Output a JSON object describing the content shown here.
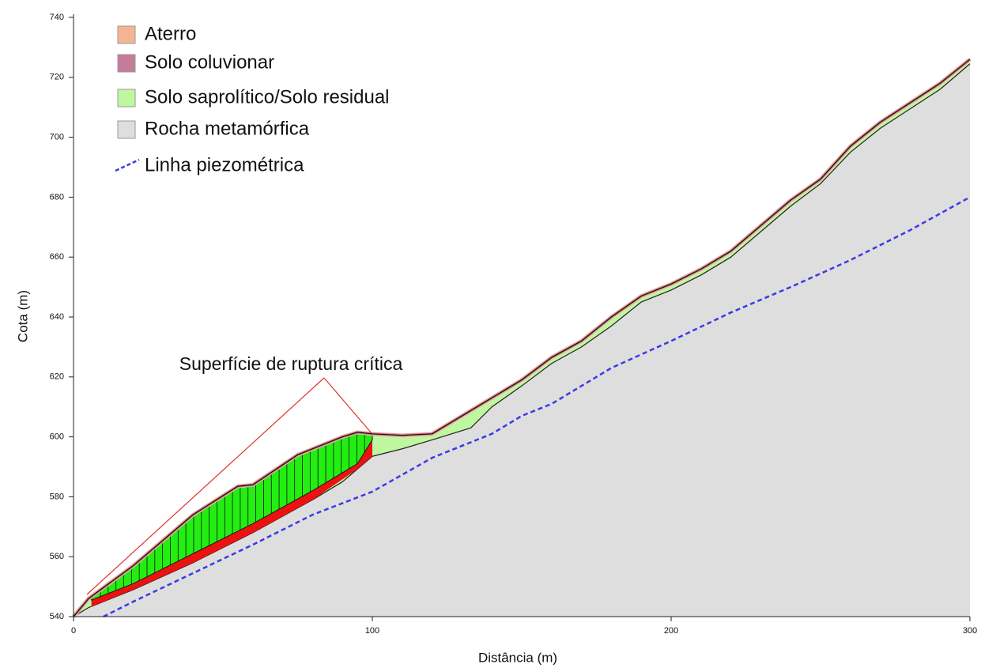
{
  "chart_data": {
    "type": "cross-section",
    "xlabel": "Distância (m)",
    "ylabel": "Cota (m)",
    "xlim": [
      0,
      300
    ],
    "ylim": [
      540,
      740
    ],
    "xticks": [
      0,
      100,
      200,
      300
    ],
    "yticks": [
      540,
      560,
      580,
      600,
      620,
      640,
      660,
      680,
      700,
      720,
      740
    ],
    "legend": [
      {
        "name": "Aterro",
        "color": "#f6b592"
      },
      {
        "name": "Solo coluvionar",
        "color": "#c77a9a"
      },
      {
        "name": "Solo saprolítico/Solo residual",
        "color": "#bff7a0"
      },
      {
        "name": "Rocha metamórfica",
        "color": "#dedede"
      },
      {
        "name": "Linha piezométrica",
        "color": "#3a3ae8"
      }
    ],
    "ground_surface": {
      "x": [
        0,
        5,
        20,
        40,
        55,
        60,
        75,
        90,
        95,
        100,
        110,
        120,
        130,
        140,
        150,
        160,
        170,
        180,
        190,
        200,
        210,
        220,
        230,
        240,
        250,
        260,
        270,
        280,
        290,
        300
      ],
      "y": [
        540,
        546,
        557,
        574,
        583.5,
        584,
        594,
        600,
        601.5,
        601,
        600.5,
        601,
        607,
        613,
        619,
        626.5,
        632,
        640,
        647,
        651,
        656,
        662,
        670.5,
        679,
        686,
        697,
        705,
        711.5,
        718,
        726
      ]
    },
    "rock_surface": {
      "x": [
        0,
        5,
        20,
        40,
        60,
        80,
        90,
        100,
        110,
        120,
        133,
        140,
        150,
        160,
        170,
        180,
        190,
        200,
        210,
        220,
        230,
        240,
        250,
        260,
        270,
        280,
        290,
        300
      ],
      "y": [
        540,
        543,
        549,
        558,
        568,
        579,
        585,
        593.5,
        596,
        599,
        603,
        610,
        617,
        624.5,
        630,
        637,
        645,
        649,
        654,
        660,
        668.5,
        677,
        684.5,
        695,
        703,
        709.5,
        716,
        724.5
      ]
    },
    "slip_surface": {
      "x": [
        6,
        20,
        40,
        60,
        80,
        95,
        100
      ],
      "y": [
        545.5,
        551,
        561,
        571,
        582,
        591,
        599
      ]
    },
    "piezometric_line": {
      "x": [
        10,
        20,
        40,
        60,
        80,
        100,
        120,
        140,
        150,
        160,
        180,
        200,
        220,
        240,
        260,
        280,
        300
      ],
      "y": [
        540,
        545,
        554.5,
        564,
        574,
        581.7,
        593,
        601,
        607,
        611,
        623,
        632,
        641.5,
        650,
        659,
        669,
        680
      ]
    },
    "slide_mass_color": "#22ee11",
    "slip_band_color": "#ee1111",
    "annotation": "Superfície de ruptura crítica"
  }
}
